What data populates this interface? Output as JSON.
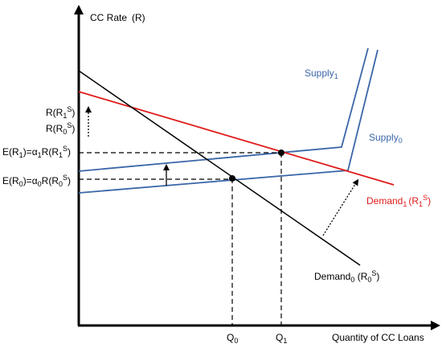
{
  "axes": {
    "y_label": "CC Rate",
    "y_label_paren": "(R)",
    "x_label": "Quantity of CC Loans"
  },
  "curves": {
    "supply1": {
      "name": "Supply",
      "sub": "1"
    },
    "supply0": {
      "name": "Supply",
      "sub": "0"
    },
    "demand1": {
      "name": "Demand",
      "sub": "1",
      "paren_open": "(R",
      "paren_sub": "1",
      "paren_sup": "S",
      "paren_close": ")"
    },
    "demand0": {
      "name": "Demand",
      "sub": "0",
      "paren_open": " (R",
      "paren_sub": "0",
      "paren_sup": "S",
      "paren_close": ")"
    }
  },
  "y_ticks": {
    "r1s": {
      "a": "R(R",
      "sub": "1",
      "sup": "S",
      "b": ")"
    },
    "r0s": {
      "a": "R(R",
      "sub": "0",
      "sup": "S",
      "b": ")"
    },
    "er1": {
      "a": "E(R",
      "sub1": "1",
      "b": ")=α",
      "sub2": "1",
      "c": "R(R",
      "sub3": "1",
      "sup": "S",
      "d": ")"
    },
    "er0": {
      "a": "E(R",
      "sub1": "0",
      "b": ")=α",
      "sub2": "0",
      "c": "R(R",
      "sub3": "0",
      "sup": "S",
      "d": ")"
    }
  },
  "x_ticks": {
    "q0": {
      "a": "Q",
      "sub": "0"
    },
    "q1": {
      "a": "Q",
      "sub": "1"
    }
  },
  "colors": {
    "axis": "#000000",
    "supply": "#3b66a8",
    "demand1": "#e01b1b",
    "demand0": "#000000",
    "dashed": "#000000"
  }
}
